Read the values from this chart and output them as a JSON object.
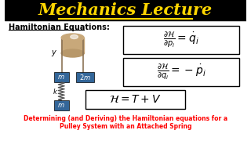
{
  "title": "Mechanics Lecture",
  "title_color": "#FFD700",
  "title_bg": "#000000",
  "subtitle": "Hamiltonian Equations:",
  "bottom_text_line1": "Determining (and Deriving) the Hamiltonian equations for a",
  "bottom_text_line2": "Pulley System with an Attached Spring",
  "bottom_text_color": "#FF0000",
  "bg_color": "#FFFFFF",
  "cyl_color": "#C8A87A",
  "cyl_dark": "#B8986A",
  "rope_color": "#8B7355",
  "mass_color": "#336699",
  "spring_color": "#555555"
}
